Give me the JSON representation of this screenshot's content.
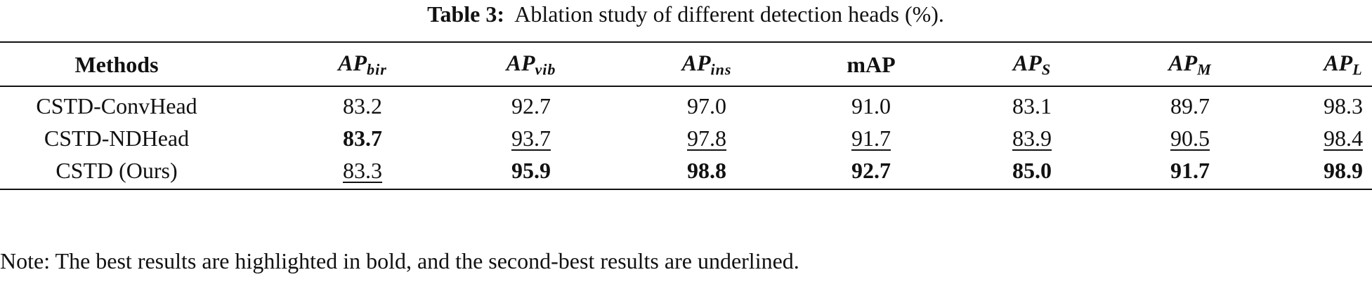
{
  "caption": {
    "label": "Table 3:",
    "text": "Ablation study of different detection heads (%)."
  },
  "table": {
    "header": [
      "Methods",
      {
        "main": "AP",
        "sub": "bir"
      },
      {
        "main": "AP",
        "sub": "vib"
      },
      {
        "main": "AP",
        "sub": "ins"
      },
      "mAP",
      {
        "main": "AP",
        "sub": "S"
      },
      {
        "main": "AP",
        "sub": "M"
      },
      {
        "main": "AP",
        "sub": "L"
      }
    ],
    "rows": [
      [
        "CSTD-ConvHead",
        "83.2",
        "92.7",
        "97.0",
        "91.0",
        "83.1",
        "89.7",
        "98.3"
      ],
      [
        "CSTD-NDHead",
        "83.7",
        "93.7",
        "97.8",
        "91.7",
        "83.9",
        "90.5",
        "98.4"
      ],
      [
        "CSTD (Ours)",
        "83.3",
        "95.9",
        "98.8",
        "92.7",
        "85.0",
        "91.7",
        "98.9"
      ]
    ],
    "bold": [
      [],
      [
        1
      ],
      [
        2,
        3,
        4,
        5,
        6,
        7
      ]
    ],
    "underline": [
      [],
      [
        2,
        3,
        4,
        5,
        6,
        7
      ],
      [
        1
      ]
    ]
  },
  "note": "Note: The best results are highlighted in bold, and the second-best results are underlined."
}
